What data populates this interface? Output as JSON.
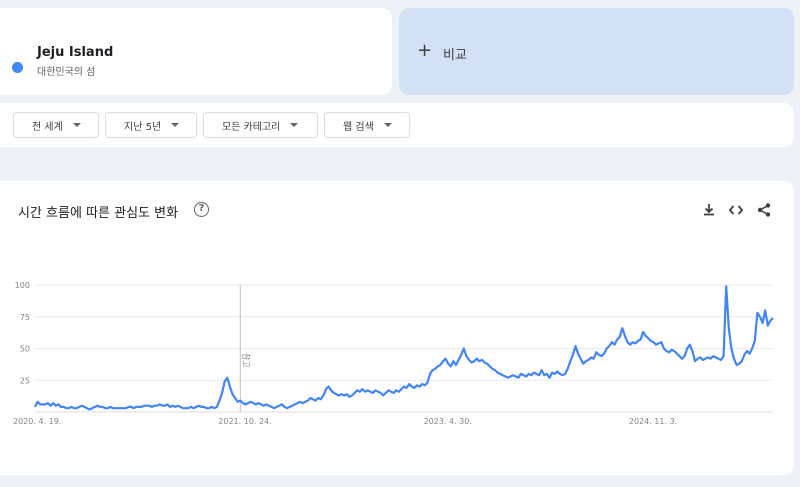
{
  "term": {
    "name": "Jeju Island",
    "subtitle": "대한민국의 섬",
    "color": "#4285f4"
  },
  "compare": {
    "plus": "+",
    "label": "비교"
  },
  "filters": [
    {
      "label": "전 세계"
    },
    {
      "label": "지난 5년"
    },
    {
      "label": "모든 카테고리"
    },
    {
      "label": "웹 검색"
    }
  ],
  "chart_section": {
    "title": "시간 흐름에 따른 관심도 변화",
    "help_icon": "help-circle-icon",
    "tools": [
      "download-icon",
      "embed-code-icon",
      "share-icon"
    ]
  },
  "chart_data": {
    "type": "line",
    "title": "",
    "xlabel": "",
    "ylabel": "",
    "ylim": [
      0,
      100
    ],
    "yticks": [
      25,
      50,
      75,
      100
    ],
    "grid": true,
    "line_color": "#4285f4",
    "x_tick_labels": [
      "2020. 4. 19.",
      "2021. 10. 24.",
      "2023. 4. 30.",
      "2024. 11. 3."
    ],
    "x_ticks_week_index": [
      0,
      79,
      158,
      237
    ],
    "annotation": {
      "label": "참고",
      "week_index": 79
    },
    "series": [
      {
        "values": [
          4,
          8,
          6,
          6,
          6,
          7,
          5,
          7,
          5,
          6,
          4,
          4,
          3,
          3,
          4,
          3,
          3,
          4,
          5,
          4,
          3,
          2,
          3,
          4,
          5,
          4,
          4,
          3,
          3,
          4,
          3,
          3,
          3,
          3,
          3,
          3,
          4,
          4,
          3,
          4,
          4,
          4,
          5,
          5,
          5,
          4,
          5,
          5,
          6,
          5,
          5,
          6,
          4,
          5,
          4,
          5,
          4,
          3,
          3,
          3,
          4,
          3,
          4,
          5,
          4,
          4,
          3,
          3,
          4,
          3,
          4,
          9,
          15,
          24,
          27,
          20,
          14,
          11,
          8,
          9,
          7,
          6,
          7,
          8,
          7,
          6,
          7,
          6,
          5,
          6,
          5,
          4,
          3,
          4,
          5,
          6,
          4,
          3,
          4,
          5,
          6,
          7,
          8,
          7,
          8,
          9,
          11,
          10,
          9,
          11,
          10,
          13,
          18,
          20,
          17,
          15,
          14,
          13,
          14,
          13,
          14,
          12,
          13,
          15,
          17,
          16,
          18,
          16,
          17,
          16,
          15,
          17,
          16,
          15,
          13,
          15,
          17,
          16,
          15,
          17,
          16,
          18,
          20,
          19,
          22,
          20,
          19,
          21,
          20,
          22,
          21,
          23,
          30,
          33,
          34,
          36,
          37,
          40,
          42,
          38,
          36,
          40,
          37,
          41,
          45,
          50,
          44,
          41,
          39,
          40,
          42,
          40,
          41,
          39,
          38,
          36,
          34,
          33,
          31,
          30,
          29,
          28,
          27,
          28,
          29,
          28,
          27,
          30,
          29,
          28,
          30,
          29,
          31,
          30,
          29,
          33,
          29,
          30,
          27,
          31,
          30,
          32,
          30,
          29,
          30,
          34,
          40,
          45,
          52,
          46,
          42,
          38,
          40,
          41,
          43,
          42,
          47,
          45,
          44,
          46,
          50,
          52,
          55,
          53,
          57,
          59,
          66,
          60,
          55,
          53,
          55,
          54,
          56,
          57,
          63,
          60,
          58,
          56,
          55,
          53,
          54,
          55,
          50,
          48,
          47,
          49,
          48,
          46,
          44,
          42,
          44,
          50,
          53,
          48,
          40,
          42,
          43,
          41,
          42,
          43,
          42,
          44,
          43,
          42,
          41,
          44,
          99,
          66,
          50,
          42,
          37,
          38,
          40,
          45,
          48,
          46,
          50,
          56,
          78,
          75,
          70,
          80,
          68,
          72,
          74
        ]
      }
    ]
  }
}
